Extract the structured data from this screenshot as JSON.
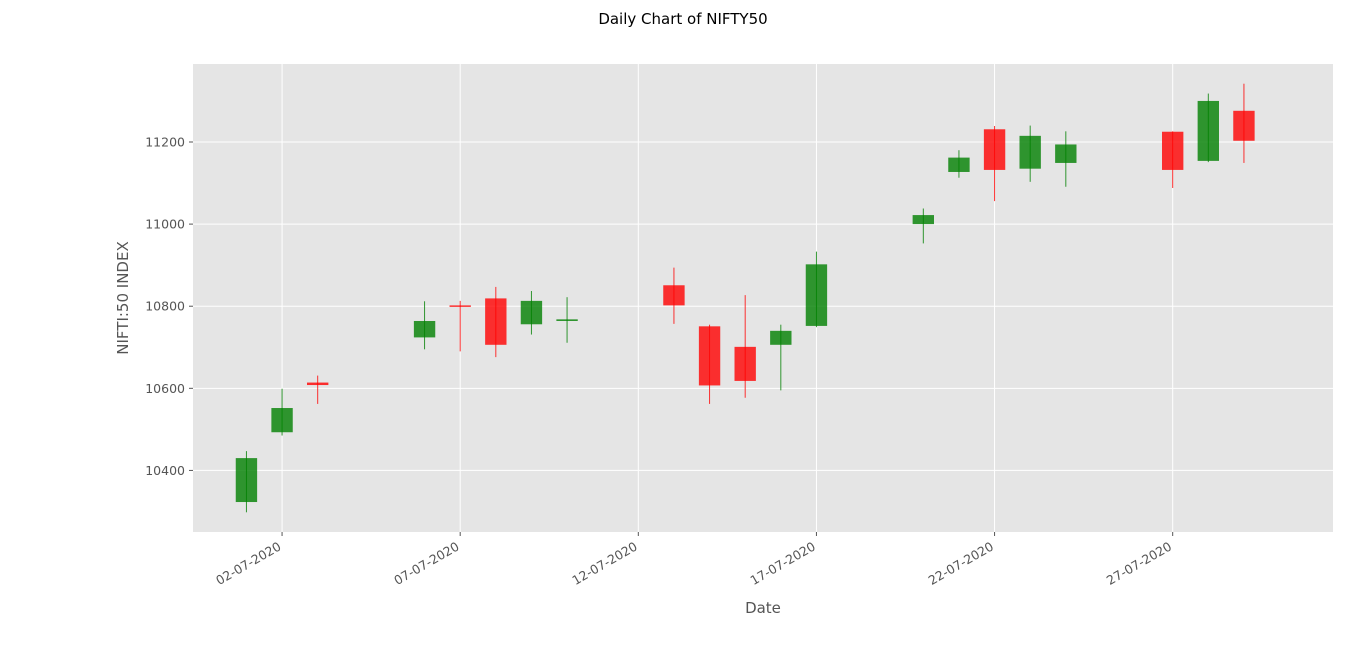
{
  "chart_data": {
    "type": "candlestick",
    "title": "Daily  Chart of NIFTY50",
    "xlabel": "Date",
    "ylabel": "NIFTI:50 INDEX",
    "ylim": [
      10250,
      11390
    ],
    "xlim": [
      "2020-06-29T12:00",
      "2020-07-31T12:00"
    ],
    "grid": true,
    "background": "#E5E5E5",
    "grid_color": "#FFFFFF",
    "up_color": "#008000",
    "down_color": "#FF0000",
    "y_ticks": [
      10400,
      10600,
      10800,
      11000,
      11200
    ],
    "x_ticks": [
      {
        "date": "2020-07-02",
        "label": "02-07-2020"
      },
      {
        "date": "2020-07-07",
        "label": "07-07-2020"
      },
      {
        "date": "2020-07-12",
        "label": "12-07-2020"
      },
      {
        "date": "2020-07-17",
        "label": "17-07-2020"
      },
      {
        "date": "2020-07-22",
        "label": "22-07-2020"
      },
      {
        "date": "2020-07-27",
        "label": "27-07-2020"
      }
    ],
    "candles": [
      {
        "date": "2020-07-01",
        "open": 10323,
        "high": 10447,
        "low": 10298,
        "close": 10430
      },
      {
        "date": "2020-07-02",
        "open": 10493,
        "high": 10599,
        "low": 10485,
        "close": 10552
      },
      {
        "date": "2020-07-03",
        "open": 10614,
        "high": 10631,
        "low": 10562,
        "close": 10608
      },
      {
        "date": "2020-07-06",
        "open": 10724,
        "high": 10812,
        "low": 10695,
        "close": 10764
      },
      {
        "date": "2020-07-07",
        "open": 10802,
        "high": 10813,
        "low": 10690,
        "close": 10800
      },
      {
        "date": "2020-07-08",
        "open": 10819,
        "high": 10847,
        "low": 10676,
        "close": 10706
      },
      {
        "date": "2020-07-09",
        "open": 10756,
        "high": 10837,
        "low": 10731,
        "close": 10813
      },
      {
        "date": "2020-07-10",
        "open": 10764,
        "high": 10822,
        "low": 10711,
        "close": 10768
      },
      {
        "date": "2020-07-13",
        "open": 10851,
        "high": 10894,
        "low": 10757,
        "close": 10802
      },
      {
        "date": "2020-07-14",
        "open": 10751,
        "high": 10755,
        "low": 10562,
        "close": 10607
      },
      {
        "date": "2020-07-15",
        "open": 10701,
        "high": 10827,
        "low": 10577,
        "close": 10618
      },
      {
        "date": "2020-07-16",
        "open": 10706,
        "high": 10755,
        "low": 10595,
        "close": 10740
      },
      {
        "date": "2020-07-17",
        "open": 10752,
        "high": 10933,
        "low": 10749,
        "close": 10902
      },
      {
        "date": "2020-07-20",
        "open": 11000,
        "high": 11038,
        "low": 10953,
        "close": 11022
      },
      {
        "date": "2020-07-21",
        "open": 11127,
        "high": 11180,
        "low": 11113,
        "close": 11162
      },
      {
        "date": "2020-07-22",
        "open": 11231,
        "high": 11239,
        "low": 11056,
        "close": 11132
      },
      {
        "date": "2020-07-23",
        "open": 11135,
        "high": 11240,
        "low": 11103,
        "close": 11215
      },
      {
        "date": "2020-07-24",
        "open": 11149,
        "high": 11226,
        "low": 11091,
        "close": 11194
      },
      {
        "date": "2020-07-27",
        "open": 11225,
        "high": 11226,
        "low": 11088,
        "close": 11132
      },
      {
        "date": "2020-07-28",
        "open": 11154,
        "high": 11318,
        "low": 11151,
        "close": 11300
      },
      {
        "date": "2020-07-29",
        "open": 11276,
        "high": 11342,
        "low": 11149,
        "close": 11203
      }
    ]
  }
}
